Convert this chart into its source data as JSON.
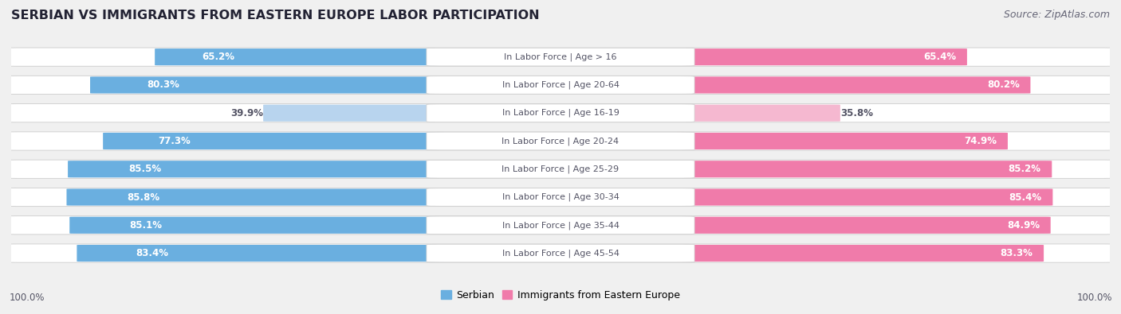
{
  "title": "SERBIAN VS IMMIGRANTS FROM EASTERN EUROPE LABOR PARTICIPATION",
  "source": "Source: ZipAtlas.com",
  "categories": [
    "In Labor Force | Age > 16",
    "In Labor Force | Age 20-64",
    "In Labor Force | Age 16-19",
    "In Labor Force | Age 20-24",
    "In Labor Force | Age 25-29",
    "In Labor Force | Age 30-34",
    "In Labor Force | Age 35-44",
    "In Labor Force | Age 45-54"
  ],
  "serbian_values": [
    65.2,
    80.3,
    39.9,
    77.3,
    85.5,
    85.8,
    85.1,
    83.4
  ],
  "immigrant_values": [
    65.4,
    80.2,
    35.8,
    74.9,
    85.2,
    85.4,
    84.9,
    83.3
  ],
  "serbian_color": "#6aafe0",
  "serbian_color_light": "#b8d4ee",
  "immigrant_color": "#f07baa",
  "immigrant_color_light": "#f5b8d0",
  "bg_color": "#f0f0f0",
  "row_bg_color": "#ffffff",
  "row_border_color": "#cccccc",
  "label_bg_color": "#ffffff",
  "label_text_color": "#555566",
  "value_text_dark": "#555566",
  "title_fontsize": 11.5,
  "source_fontsize": 9,
  "bar_label_fontsize": 8.5,
  "category_fontsize": 8,
  "legend_fontsize": 9,
  "footer_fontsize": 8.5
}
